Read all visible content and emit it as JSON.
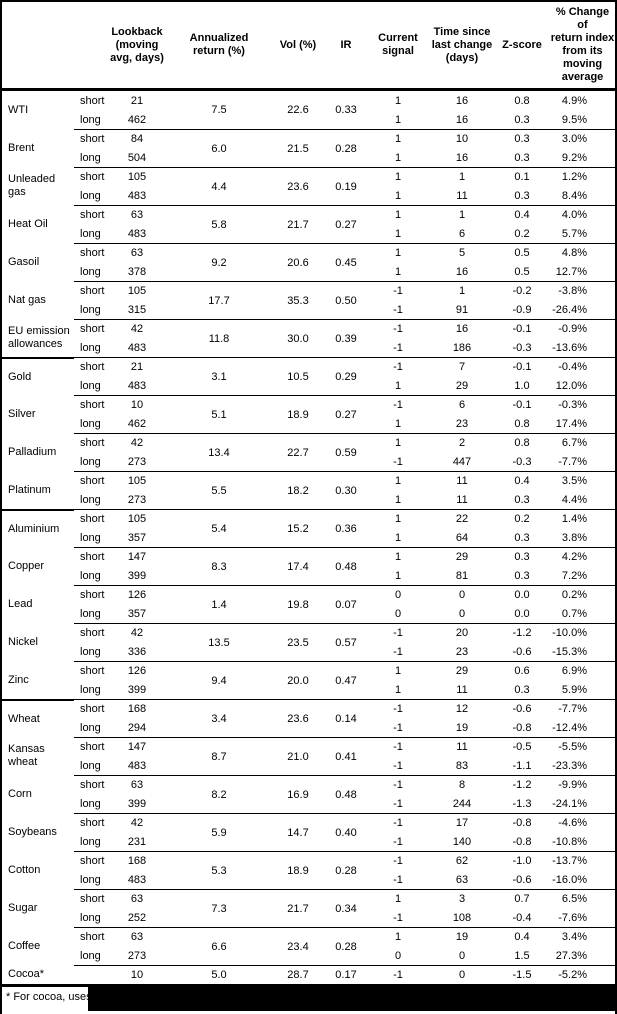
{
  "header": {
    "lookback": "Lookback\n(moving\navg, days)",
    "annualized": "Annualized\nreturn (%)",
    "vol": "Vol (%)",
    "ir": "IR",
    "signal": "Current\nsignal",
    "time": "Time since\nlast change\n(days)",
    "zscore": "Z-score",
    "pct": "% Change of\nreturn index\nfrom its\nmoving\naverage"
  },
  "table": {
    "commodities": [
      {
        "name": "WTI",
        "section_break": false,
        "annualized": "7.5",
        "vol": "22.6",
        "ir": "0.33",
        "rows": [
          {
            "sub": "short",
            "lookback": "21",
            "signal": "1",
            "time": "16",
            "z": "0.8",
            "pct": "4.9%"
          },
          {
            "sub": "long",
            "lookback": "462",
            "signal": "1",
            "time": "16",
            "z": "0.3",
            "pct": "9.5%"
          }
        ]
      },
      {
        "name": "Brent",
        "section_break": false,
        "annualized": "6.0",
        "vol": "21.5",
        "ir": "0.28",
        "rows": [
          {
            "sub": "short",
            "lookback": "84",
            "signal": "1",
            "time": "10",
            "z": "0.3",
            "pct": "3.0%"
          },
          {
            "sub": "long",
            "lookback": "504",
            "signal": "1",
            "time": "16",
            "z": "0.3",
            "pct": "9.2%"
          }
        ]
      },
      {
        "name": "Unleaded gas",
        "section_break": false,
        "annualized": "4.4",
        "vol": "23.6",
        "ir": "0.19",
        "rows": [
          {
            "sub": "short",
            "lookback": "105",
            "signal": "1",
            "time": "1",
            "z": "0.1",
            "pct": "1.2%"
          },
          {
            "sub": "long",
            "lookback": "483",
            "signal": "1",
            "time": "11",
            "z": "0.3",
            "pct": "8.4%"
          }
        ]
      },
      {
        "name": "Heat Oil",
        "section_break": false,
        "annualized": "5.8",
        "vol": "21.7",
        "ir": "0.27",
        "rows": [
          {
            "sub": "short",
            "lookback": "63",
            "signal": "1",
            "time": "1",
            "z": "0.4",
            "pct": "4.0%"
          },
          {
            "sub": "long",
            "lookback": "483",
            "signal": "1",
            "time": "6",
            "z": "0.2",
            "pct": "5.7%"
          }
        ]
      },
      {
        "name": "Gasoil",
        "section_break": false,
        "annualized": "9.2",
        "vol": "20.6",
        "ir": "0.45",
        "rows": [
          {
            "sub": "short",
            "lookback": "63",
            "signal": "1",
            "time": "5",
            "z": "0.5",
            "pct": "4.8%"
          },
          {
            "sub": "long",
            "lookback": "378",
            "signal": "1",
            "time": "16",
            "z": "0.5",
            "pct": "12.7%"
          }
        ]
      },
      {
        "name": "Nat gas",
        "section_break": false,
        "annualized": "17.7",
        "vol": "35.3",
        "ir": "0.50",
        "rows": [
          {
            "sub": "short",
            "lookback": "105",
            "signal": "-1",
            "time": "1",
            "z": "-0.2",
            "pct": "-3.8%"
          },
          {
            "sub": "long",
            "lookback": "315",
            "signal": "-1",
            "time": "91",
            "z": "-0.9",
            "pct": "-26.4%"
          }
        ]
      },
      {
        "name": "EU emission allowances",
        "section_break": false,
        "annualized": "11.8",
        "vol": "30.0",
        "ir": "0.39",
        "rows": [
          {
            "sub": "short",
            "lookback": "42",
            "signal": "-1",
            "time": "16",
            "z": "-0.1",
            "pct": "-0.9%"
          },
          {
            "sub": "long",
            "lookback": "483",
            "signal": "-1",
            "time": "186",
            "z": "-0.3",
            "pct": "-13.6%"
          }
        ]
      },
      {
        "name": "Gold",
        "section_break": true,
        "annualized": "3.1",
        "vol": "10.5",
        "ir": "0.29",
        "rows": [
          {
            "sub": "short",
            "lookback": "21",
            "signal": "-1",
            "time": "7",
            "z": "-0.1",
            "pct": "-0.4%"
          },
          {
            "sub": "long",
            "lookback": "483",
            "signal": "1",
            "time": "29",
            "z": "1.0",
            "pct": "12.0%"
          }
        ]
      },
      {
        "name": "Silver",
        "section_break": false,
        "annualized": "5.1",
        "vol": "18.9",
        "ir": "0.27",
        "rows": [
          {
            "sub": "short",
            "lookback": "10",
            "signal": "-1",
            "time": "6",
            "z": "-0.1",
            "pct": "-0.3%"
          },
          {
            "sub": "long",
            "lookback": "462",
            "signal": "1",
            "time": "23",
            "z": "0.8",
            "pct": "17.4%"
          }
        ]
      },
      {
        "name": "Palladium",
        "section_break": false,
        "annualized": "13.4",
        "vol": "22.7",
        "ir": "0.59",
        "rows": [
          {
            "sub": "short",
            "lookback": "42",
            "signal": "1",
            "time": "2",
            "z": "0.8",
            "pct": "6.7%"
          },
          {
            "sub": "long",
            "lookback": "273",
            "signal": "-1",
            "time": "447",
            "z": "-0.3",
            "pct": "-7.7%"
          }
        ]
      },
      {
        "name": "Platinum",
        "section_break": false,
        "annualized": "5.5",
        "vol": "18.2",
        "ir": "0.30",
        "rows": [
          {
            "sub": "short",
            "lookback": "105",
            "signal": "1",
            "time": "11",
            "z": "0.4",
            "pct": "3.5%"
          },
          {
            "sub": "long",
            "lookback": "273",
            "signal": "1",
            "time": "11",
            "z": "0.3",
            "pct": "4.4%"
          }
        ]
      },
      {
        "name": "Aluminium",
        "section_break": true,
        "annualized": "5.4",
        "vol": "15.2",
        "ir": "0.36",
        "rows": [
          {
            "sub": "short",
            "lookback": "105",
            "signal": "1",
            "time": "22",
            "z": "0.2",
            "pct": "1.4%"
          },
          {
            "sub": "long",
            "lookback": "357",
            "signal": "1",
            "time": "64",
            "z": "0.3",
            "pct": "3.8%"
          }
        ]
      },
      {
        "name": "Copper",
        "section_break": false,
        "annualized": "8.3",
        "vol": "17.4",
        "ir": "0.48",
        "rows": [
          {
            "sub": "short",
            "lookback": "147",
            "signal": "1",
            "time": "29",
            "z": "0.3",
            "pct": "4.2%"
          },
          {
            "sub": "long",
            "lookback": "399",
            "signal": "1",
            "time": "81",
            "z": "0.3",
            "pct": "7.2%"
          }
        ]
      },
      {
        "name": "Lead",
        "section_break": false,
        "annualized": "1.4",
        "vol": "19.8",
        "ir": "0.07",
        "rows": [
          {
            "sub": "short",
            "lookback": "126",
            "signal": "0",
            "time": "0",
            "z": "0.0",
            "pct": "0.2%"
          },
          {
            "sub": "long",
            "lookback": "357",
            "signal": "0",
            "time": "0",
            "z": "0.0",
            "pct": "0.7%"
          }
        ]
      },
      {
        "name": "Nickel",
        "section_break": false,
        "annualized": "13.5",
        "vol": "23.5",
        "ir": "0.57",
        "rows": [
          {
            "sub": "short",
            "lookback": "42",
            "signal": "-1",
            "time": "20",
            "z": "-1.2",
            "pct": "-10.0%"
          },
          {
            "sub": "long",
            "lookback": "336",
            "signal": "-1",
            "time": "23",
            "z": "-0.6",
            "pct": "-15.3%"
          }
        ]
      },
      {
        "name": "Zinc",
        "section_break": false,
        "annualized": "9.4",
        "vol": "20.0",
        "ir": "0.47",
        "rows": [
          {
            "sub": "short",
            "lookback": "126",
            "signal": "1",
            "time": "29",
            "z": "0.6",
            "pct": "6.9%"
          },
          {
            "sub": "long",
            "lookback": "399",
            "signal": "1",
            "time": "11",
            "z": "0.3",
            "pct": "5.9%"
          }
        ]
      },
      {
        "name": "Wheat",
        "section_break": true,
        "annualized": "3.4",
        "vol": "23.6",
        "ir": "0.14",
        "rows": [
          {
            "sub": "short",
            "lookback": "168",
            "signal": "-1",
            "time": "12",
            "z": "-0.6",
            "pct": "-7.7%"
          },
          {
            "sub": "long",
            "lookback": "294",
            "signal": "-1",
            "time": "19",
            "z": "-0.8",
            "pct": "-12.4%"
          }
        ]
      },
      {
        "name": "Kansas wheat",
        "section_break": false,
        "annualized": "8.7",
        "vol": "21.0",
        "ir": "0.41",
        "rows": [
          {
            "sub": "short",
            "lookback": "147",
            "signal": "-1",
            "time": "11",
            "z": "-0.5",
            "pct": "-5.5%"
          },
          {
            "sub": "long",
            "lookback": "483",
            "signal": "-1",
            "time": "83",
            "z": "-1.1",
            "pct": "-23.3%"
          }
        ]
      },
      {
        "name": "Corn",
        "section_break": false,
        "annualized": "8.2",
        "vol": "16.9",
        "ir": "0.48",
        "rows": [
          {
            "sub": "short",
            "lookback": "63",
            "signal": "-1",
            "time": "8",
            "z": "-1.2",
            "pct": "-9.9%"
          },
          {
            "sub": "long",
            "lookback": "399",
            "signal": "-1",
            "time": "244",
            "z": "-1.3",
            "pct": "-24.1%"
          }
        ]
      },
      {
        "name": "Soybeans",
        "section_break": false,
        "annualized": "5.9",
        "vol": "14.7",
        "ir": "0.40",
        "rows": [
          {
            "sub": "short",
            "lookback": "42",
            "signal": "-1",
            "time": "17",
            "z": "-0.8",
            "pct": "-4.6%"
          },
          {
            "sub": "long",
            "lookback": "231",
            "signal": "-1",
            "time": "140",
            "z": "-0.8",
            "pct": "-10.8%"
          }
        ]
      },
      {
        "name": "Cotton",
        "section_break": false,
        "annualized": "5.3",
        "vol": "18.9",
        "ir": "0.28",
        "rows": [
          {
            "sub": "short",
            "lookback": "168",
            "signal": "-1",
            "time": "62",
            "z": "-1.0",
            "pct": "-13.7%"
          },
          {
            "sub": "long",
            "lookback": "483",
            "signal": "-1",
            "time": "63",
            "z": "-0.6",
            "pct": "-16.0%"
          }
        ]
      },
      {
        "name": "Sugar",
        "section_break": false,
        "annualized": "7.3",
        "vol": "21.7",
        "ir": "0.34",
        "rows": [
          {
            "sub": "short",
            "lookback": "63",
            "signal": "1",
            "time": "3",
            "z": "0.7",
            "pct": "6.5%"
          },
          {
            "sub": "long",
            "lookback": "252",
            "signal": "-1",
            "time": "108",
            "z": "-0.4",
            "pct": "-7.6%"
          }
        ]
      },
      {
        "name": "Coffee",
        "section_break": false,
        "annualized": "6.6",
        "vol": "23.4",
        "ir": "0.28",
        "rows": [
          {
            "sub": "short",
            "lookback": "63",
            "signal": "1",
            "time": "19",
            "z": "0.4",
            "pct": "3.4%"
          },
          {
            "sub": "long",
            "lookback": "273",
            "signal": "0",
            "time": "0",
            "z": "1.5",
            "pct": "27.3%"
          }
        ]
      },
      {
        "name": "Cocoa*",
        "section_break": false,
        "annualized": "5.0",
        "vol": "28.7",
        "ir": "0.17",
        "rows": [
          {
            "sub": "",
            "lookback": "10",
            "signal": "-1",
            "time": "0",
            "z": "-1.5",
            "pct": "-5.2%"
          }
        ]
      }
    ]
  },
  "footnote": {
    "visible_text": "* For cocoa, uses o"
  },
  "colors": {
    "text": "#000000",
    "background": "#ffffff",
    "rule": "#000000",
    "redaction": "#000000"
  }
}
